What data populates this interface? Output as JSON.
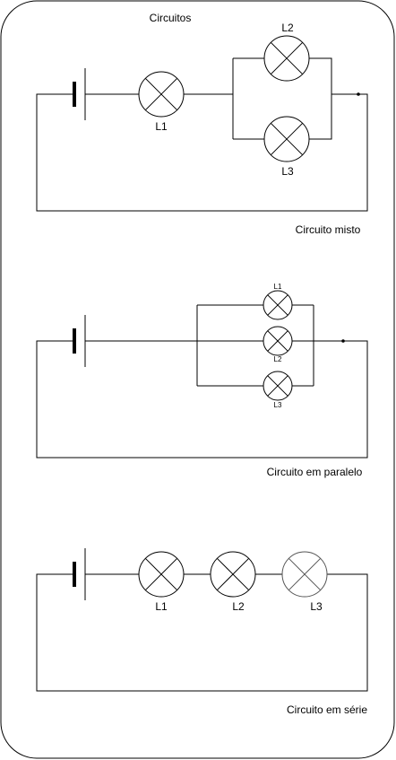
{
  "title": "Circuitos",
  "circuits": [
    {
      "caption": "Circuito misto",
      "lamps": [
        "L1",
        "L2",
        "L3"
      ]
    },
    {
      "caption": "Circuito em paralelo",
      "lamps": [
        "L1",
        "L2",
        "L3"
      ]
    },
    {
      "caption": "Circuito em série",
      "lamps": [
        "L1",
        "L2",
        "L3"
      ]
    }
  ],
  "colors": {
    "stroke": "#000000",
    "background": "#ffffff"
  }
}
